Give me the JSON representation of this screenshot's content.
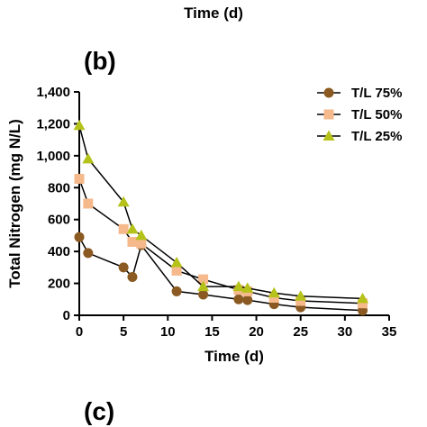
{
  "header": {
    "top_xlabel": "Time (d)"
  },
  "panels": {
    "b": "(b)",
    "c": "(c)"
  },
  "colors": {
    "axis": "#000000",
    "line": "#000000"
  },
  "chart_data": {
    "type": "line",
    "xlabel": "Time (d)",
    "ylabel": "Total Nitrogen (mg N/L)",
    "xlim": [
      0,
      35
    ],
    "ylim": [
      0,
      1400
    ],
    "xticks": [
      0,
      5,
      10,
      15,
      20,
      25,
      30,
      35
    ],
    "yticks": [
      0,
      200,
      400,
      600,
      800,
      1000,
      1200,
      1400
    ],
    "ytick_labels": [
      "0",
      "200",
      "400",
      "600",
      "800",
      "1,000",
      "1,200",
      "1,400"
    ],
    "grid": false,
    "legend_position": "top-right",
    "series": [
      {
        "name": "T/L 75%",
        "marker": "circle",
        "color": "#8B5A22",
        "x": [
          0,
          1,
          5,
          6,
          7,
          11,
          14,
          18,
          19,
          22,
          25,
          32
        ],
        "y": [
          490,
          390,
          300,
          240,
          440,
          150,
          130,
          100,
          95,
          70,
          50,
          30
        ]
      },
      {
        "name": "T/L 50%",
        "marker": "square",
        "color": "#F5B98C",
        "x": [
          0,
          1,
          5,
          6,
          7,
          11,
          14,
          18,
          19,
          22,
          25,
          32
        ],
        "y": [
          855,
          700,
          540,
          460,
          450,
          280,
          225,
          160,
          150,
          110,
          90,
          75
        ]
      },
      {
        "name": "T/L 25%",
        "marker": "triangle",
        "color": "#B5C21A",
        "x": [
          0,
          1,
          5,
          6,
          7,
          11,
          14,
          18,
          19,
          22,
          25,
          32
        ],
        "y": [
          1190,
          980,
          710,
          540,
          500,
          330,
          180,
          180,
          170,
          140,
          120,
          105
        ]
      }
    ]
  }
}
